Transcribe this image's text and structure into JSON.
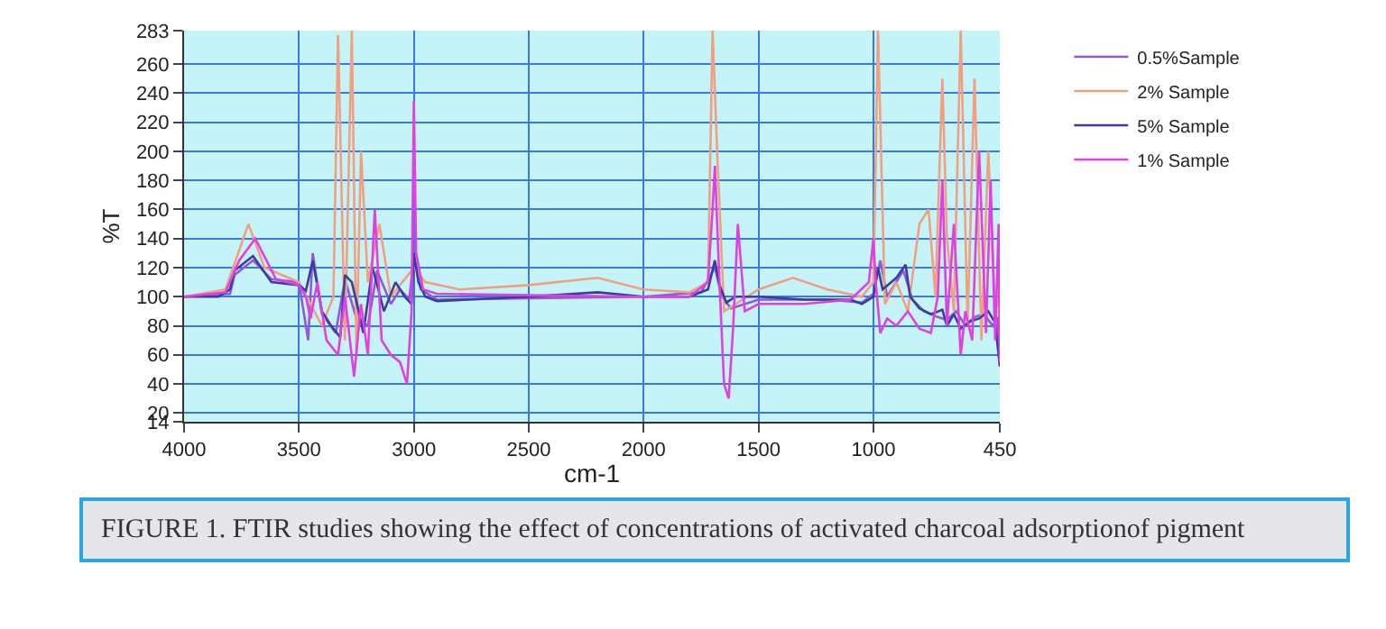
{
  "chart_data": {
    "type": "line",
    "xlabel": "cm-1",
    "ylabel": "%T",
    "xlim": [
      4000,
      450
    ],
    "xticks": [
      4000,
      3500,
      3000,
      2500,
      2000,
      1500,
      1000,
      450
    ],
    "ylim": [
      14,
      283
    ],
    "yticks": [
      14,
      20,
      40,
      60,
      80,
      100,
      120,
      140,
      160,
      180,
      200,
      220,
      240,
      260,
      283
    ],
    "grid": true,
    "legend": "right",
    "annotations": [
      "FIGURE 1. FTIR studies showing the effect of concentrations of activated charcoal adsorptionof pigment"
    ],
    "series": [
      {
        "name": "0.5%Sample",
        "color": "#8e5ad6",
        "x": [
          4000,
          3800,
          3780,
          3700,
          3620,
          3500,
          3460,
          3440,
          3400,
          3340,
          3300,
          3250,
          3200,
          3160,
          3100,
          3060,
          3020,
          3000,
          2970,
          2900,
          2500,
          2000,
          1750,
          1690,
          1660,
          1620,
          1500,
          1200,
          1050,
          1000,
          970,
          940,
          870,
          830,
          780,
          720,
          680,
          640,
          600,
          560,
          520,
          480,
          460,
          450
        ],
        "values": [
          100,
          102,
          115,
          125,
          112,
          110,
          70,
          130,
          88,
          75,
          112,
          85,
          80,
          118,
          95,
          105,
          98,
          128,
          105,
          98,
          99,
          100,
          103,
          120,
          100,
          92,
          98,
          98,
          96,
          102,
          125,
          100,
          118,
          98,
          90,
          86,
          84,
          90,
          80,
          86,
          88,
          80,
          86,
          60
        ]
      },
      {
        "name": "2% Sample",
        "color": "#f0a080",
        "x": [
          4000,
          3820,
          3720,
          3650,
          3500,
          3450,
          3400,
          3350,
          3330,
          3300,
          3270,
          3250,
          3230,
          3200,
          3150,
          3100,
          3050,
          3000,
          2950,
          2800,
          2500,
          2200,
          2000,
          1800,
          1720,
          1700,
          1680,
          1650,
          1600,
          1500,
          1350,
          1200,
          1050,
          1000,
          980,
          950,
          900,
          850,
          800,
          760,
          730,
          700,
          680,
          650,
          620,
          590,
          560,
          530,
          500,
          470,
          450
        ],
        "values": [
          100,
          105,
          150,
          120,
          110,
          95,
          80,
          100,
          280,
          70,
          283,
          60,
          200,
          110,
          150,
          100,
          110,
          120,
          110,
          105,
          108,
          113,
          105,
          103,
          110,
          283,
          200,
          90,
          95,
          105,
          113,
          105,
          100,
          110,
          283,
          95,
          110,
          90,
          150,
          160,
          100,
          250,
          140,
          90,
          283,
          80,
          250,
          70,
          200,
          90,
          100
        ]
      },
      {
        "name": "5% Sample",
        "color": "#3c3c9c",
        "x": [
          4000,
          3850,
          3800,
          3780,
          3700,
          3620,
          3500,
          3470,
          3440,
          3400,
          3360,
          3320,
          3300,
          3270,
          3240,
          3220,
          3180,
          3130,
          3080,
          3040,
          3010,
          3000,
          2980,
          2950,
          2900,
          2500,
          2200,
          2000,
          1800,
          1720,
          1690,
          1670,
          1640,
          1600,
          1500,
          1300,
          1100,
          1050,
          1000,
          980,
          960,
          900,
          860,
          840,
          800,
          750,
          700,
          680,
          650,
          620,
          580,
          540,
          500,
          470,
          450
        ],
        "values": [
          100,
          100,
          105,
          118,
          128,
          110,
          108,
          104,
          125,
          90,
          80,
          72,
          115,
          110,
          90,
          75,
          120,
          90,
          110,
          100,
          95,
          130,
          110,
          100,
          97,
          100,
          103,
          100,
          100,
          105,
          125,
          108,
          96,
          100,
          100,
          98,
          98,
          95,
          100,
          120,
          105,
          113,
          122,
          100,
          92,
          88,
          91,
          80,
          88,
          78,
          83,
          85,
          90,
          82,
          52
        ]
      },
      {
        "name": "1% Sample",
        "color": "#e040e0",
        "x": [
          4000,
          3820,
          3760,
          3690,
          3600,
          3500,
          3470,
          3450,
          3420,
          3380,
          3330,
          3300,
          3260,
          3230,
          3200,
          3170,
          3140,
          3100,
          3060,
          3030,
          3010,
          3000,
          2990,
          2960,
          2900,
          2500,
          2000,
          1800,
          1720,
          1700,
          1690,
          1670,
          1650,
          1630,
          1610,
          1590,
          1560,
          1500,
          1300,
          1100,
          1020,
          1000,
          990,
          970,
          940,
          900,
          850,
          800,
          750,
          720,
          700,
          680,
          650,
          620,
          600,
          570,
          540,
          510,
          490,
          470,
          455,
          450
        ],
        "values": [
          100,
          103,
          125,
          140,
          112,
          108,
          100,
          85,
          110,
          70,
          60,
          100,
          45,
          95,
          60,
          160,
          70,
          60,
          55,
          40,
          90,
          235,
          130,
          105,
          102,
          101,
          100,
          100,
          110,
          160,
          190,
          110,
          40,
          30,
          80,
          150,
          90,
          95,
          95,
          98,
          110,
          140,
          110,
          75,
          85,
          80,
          90,
          78,
          75,
          100,
          180,
          80,
          150,
          60,
          90,
          70,
          200,
          75,
          180,
          70,
          150,
          55
        ]
      }
    ]
  }
}
